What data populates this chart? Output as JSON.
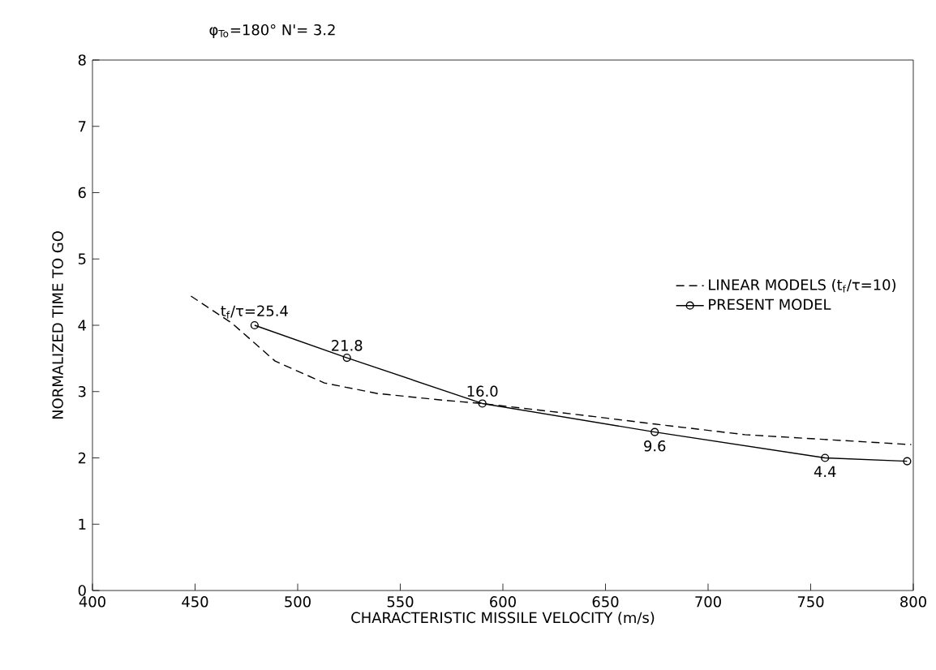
{
  "chart_data": {
    "type": "line",
    "title": "φ$_{To}$=180°    N'= 3.2",
    "xlabel": "CHARACTERISTIC MISSILE VELOCITY (m/s)",
    "ylabel": "NORMALIZED  TIME  TO  GO",
    "xlim": [
      400,
      800
    ],
    "ylim": [
      0,
      8
    ],
    "xticks": [
      400,
      450,
      500,
      550,
      600,
      650,
      700,
      750,
      800
    ],
    "yticks": [
      0,
      1,
      2,
      3,
      4,
      5,
      6,
      7,
      8
    ],
    "legend": "right",
    "grid": false,
    "series": [
      {
        "name": "LINEAR MODELS (t$_{f}$/τ=10)",
        "color": "#000000",
        "line_style": "dashed",
        "marker": "none",
        "x": [
          448,
          468,
          489,
          513,
          539,
          571,
          590,
          640,
          674,
          718,
          799
        ],
        "values": [
          4.44,
          4.03,
          3.46,
          3.13,
          2.97,
          2.87,
          2.82,
          2.64,
          2.51,
          2.35,
          2.2
        ]
      },
      {
        "name": "PRESENT MODEL",
        "color": "#000000",
        "line_style": "solid",
        "marker": "circle",
        "x": [
          479,
          524,
          590,
          674,
          757,
          797
        ],
        "values": [
          4.0,
          3.51,
          2.82,
          2.39,
          2.0,
          1.95
        ]
      }
    ],
    "annotations": [
      {
        "text": "t$_{f}$/τ=25.4",
        "x": 479,
        "y": 4.0
      },
      {
        "text": "21.8",
        "x": 524,
        "y": 3.51
      },
      {
        "text": "16.0",
        "x": 590,
        "y": 2.82
      },
      {
        "text": "9.6",
        "x": 674,
        "y": 2.39
      },
      {
        "text": "4.4",
        "x": 757,
        "y": 2.0
      }
    ]
  }
}
